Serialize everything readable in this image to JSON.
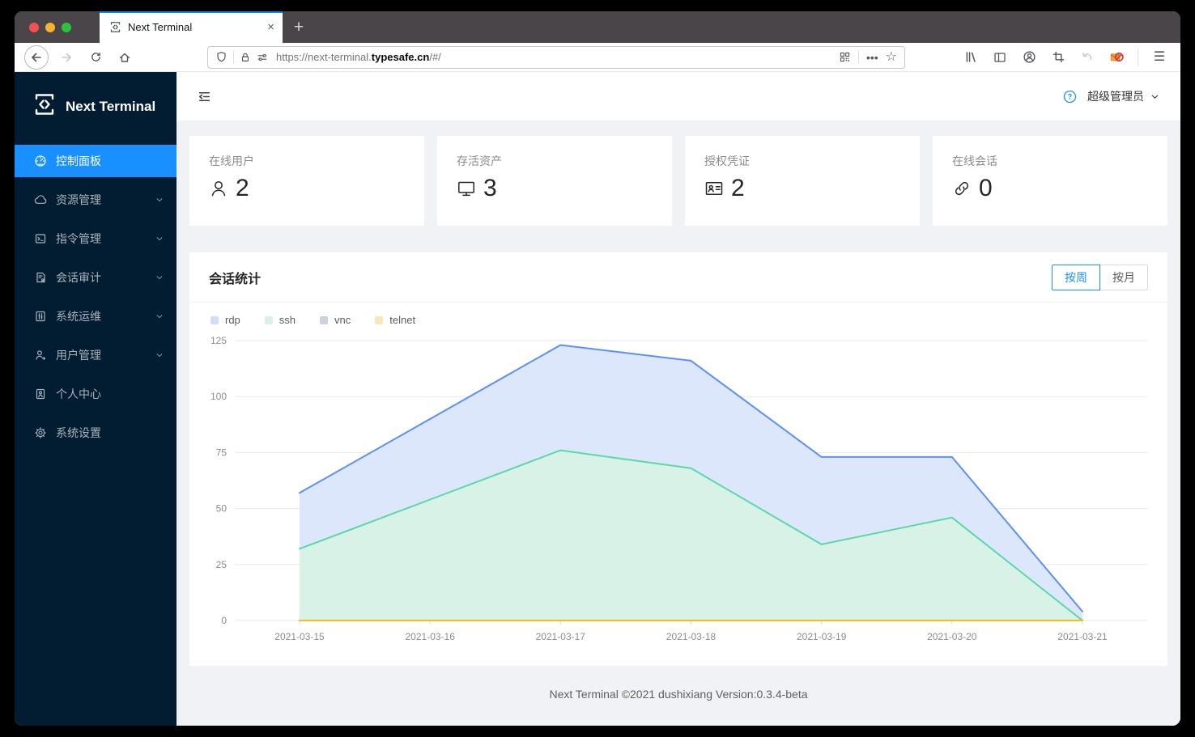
{
  "browser": {
    "tab": {
      "title": "Next Terminal",
      "favicon": "terminal-favicon",
      "close_glyph": "×",
      "newtab_glyph": "+"
    },
    "nav_icons": [
      "back-icon",
      "forward-icon",
      "reload-icon",
      "home-icon"
    ],
    "urlbar": {
      "left_icons": [
        "shield-icon",
        "divider",
        "lock-icon",
        "permissions-icon"
      ],
      "url": {
        "prefix": "https://next-terminal.",
        "domain": "typesafe.cn",
        "suffix": "/#/"
      },
      "right_icons": [
        "qr-code-icon",
        "divider",
        "ellipsis-icon",
        "star-icon"
      ]
    },
    "toolbar_right_icons": [
      "library-icon",
      "sidebar-toggle-icon",
      "account-icon",
      "screenshot-icon",
      "undo-icon",
      "mail-blocked-icon",
      "divider",
      "menu-icon"
    ]
  },
  "sidebar": {
    "logo_text": "Next Terminal",
    "items": [
      {
        "key": "dashboard",
        "label": "控制面板",
        "icon": "dashboard-icon",
        "active": true,
        "chevron": false
      },
      {
        "key": "resources",
        "label": "资源管理",
        "icon": "cloud-icon",
        "active": false,
        "chevron": true
      },
      {
        "key": "commands",
        "label": "指令管理",
        "icon": "code-icon",
        "active": false,
        "chevron": true
      },
      {
        "key": "audit",
        "label": "会话审计",
        "icon": "audit-icon",
        "active": false,
        "chevron": true
      },
      {
        "key": "ops",
        "label": "系统运维",
        "icon": "ops-icon",
        "active": false,
        "chevron": true
      },
      {
        "key": "users",
        "label": "用户管理",
        "icon": "team-icon",
        "active": false,
        "chevron": true
      },
      {
        "key": "profile",
        "label": "个人中心",
        "icon": "profile-icon",
        "active": false,
        "chevron": false
      },
      {
        "key": "settings",
        "label": "系统设置",
        "icon": "settings-icon",
        "active": false,
        "chevron": false
      }
    ]
  },
  "header": {
    "user": "超级管理员",
    "help_icon": "question-circle-icon"
  },
  "stats": [
    {
      "key": "online-users",
      "label": "在线用户",
      "value": "2",
      "icon": "user-icon"
    },
    {
      "key": "assets",
      "label": "存活资产",
      "value": "3",
      "icon": "monitor-icon"
    },
    {
      "key": "credentials",
      "label": "授权凭证",
      "value": "2",
      "icon": "idcard-icon"
    },
    {
      "key": "online-sessions",
      "label": "在线会话",
      "value": "0",
      "icon": "link-icon"
    }
  ],
  "chart_card": {
    "title": "会话统计",
    "toggle": [
      {
        "label": "按周",
        "active": true
      },
      {
        "label": "按月",
        "active": false
      }
    ]
  },
  "chart_data": {
    "type": "area",
    "title": "会话统计",
    "xlabel": "",
    "ylabel": "",
    "grid": true,
    "legend_position": "top-left",
    "categories": [
      "2021-03-15",
      "2021-03-16",
      "2021-03-17",
      "2021-03-18",
      "2021-03-19",
      "2021-03-20",
      "2021-03-21"
    ],
    "series": [
      {
        "name": "rdp",
        "color": "#5B8FF9",
        "fill": "#dce7fc",
        "legend_fill": "#cfdefb",
        "values": [
          57,
          90,
          123,
          116,
          73,
          73,
          4
        ]
      },
      {
        "name": "ssh",
        "color": "#5AD8A6",
        "fill": "#d8f2e7",
        "legend_fill": "#d7f2e6",
        "values": [
          32,
          54,
          76,
          68,
          34,
          46,
          0
        ]
      },
      {
        "name": "vnc",
        "color": "#5D7092",
        "fill": "#dfe3ea",
        "legend_fill": "#ccd3dd",
        "values": [
          0,
          0,
          0,
          0,
          0,
          0,
          0
        ]
      },
      {
        "name": "telnet",
        "color": "#F6BD16",
        "fill": "#fdeecb",
        "legend_fill": "#fae7b9",
        "values": [
          0,
          0,
          0,
          0,
          0,
          0,
          0
        ]
      }
    ],
    "ylim": [
      0,
      125
    ],
    "yticks": [
      0,
      25,
      50,
      75,
      100,
      125
    ]
  },
  "footer": {
    "text": "Next Terminal ©2021 dushixiang Version:0.3.4-beta"
  },
  "colors": {
    "accent": "#1890ff",
    "sidebar_bg": "#021c31",
    "content_bg": "#f0f2f5",
    "tab_stripe": "#0a84ff"
  }
}
